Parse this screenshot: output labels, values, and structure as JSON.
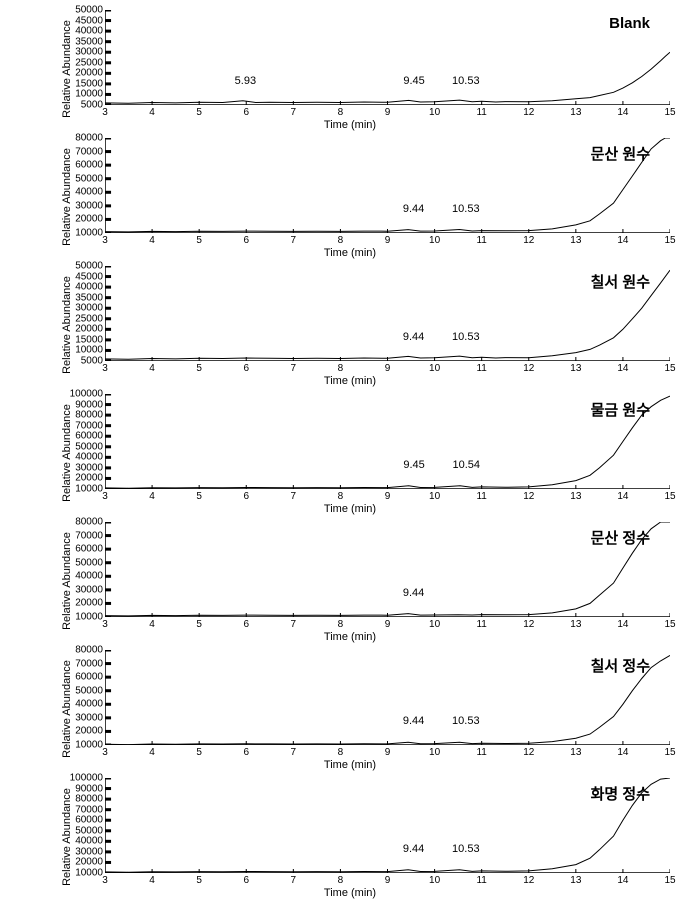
{
  "common": {
    "xlabel": "Time (min)",
    "ylabel": "Relative Abundance",
    "xlim": [
      3,
      15
    ],
    "xtick_step": 1,
    "background_color": "#ffffff",
    "line_color": "#000000",
    "text_color": "#000000",
    "label_fontsize": 11,
    "tick_fontsize": 10,
    "legend_fontsize": 15,
    "peak_fontsize": 11,
    "line_width": 1
  },
  "charts": [
    {
      "id": "blank",
      "legend": "Blank",
      "ylim": [
        5000,
        50000
      ],
      "yticks": [
        5000,
        10000,
        15000,
        20000,
        25000,
        30000,
        35000,
        40000,
        45000,
        50000
      ],
      "peaks": [
        {
          "x": 5.93,
          "label": "5.93"
        },
        {
          "x": 9.45,
          "label": "9.45"
        },
        {
          "x": 10.53,
          "label": "10.53"
        }
      ],
      "data": [
        [
          3,
          6000
        ],
        [
          3.5,
          5800
        ],
        [
          4,
          6200
        ],
        [
          4.5,
          6000
        ],
        [
          5,
          6300
        ],
        [
          5.5,
          6200
        ],
        [
          5.93,
          7000
        ],
        [
          6.2,
          6200
        ],
        [
          6.5,
          6300
        ],
        [
          7,
          6200
        ],
        [
          7.5,
          6300
        ],
        [
          8,
          6200
        ],
        [
          8.5,
          6400
        ],
        [
          9,
          6300
        ],
        [
          9.45,
          7200
        ],
        [
          9.7,
          6400
        ],
        [
          10,
          6500
        ],
        [
          10.53,
          7300
        ],
        [
          10.8,
          6500
        ],
        [
          11,
          6800
        ],
        [
          11.3,
          6400
        ],
        [
          11.5,
          6600
        ],
        [
          12,
          6500
        ],
        [
          12.5,
          7000
        ],
        [
          13,
          8000
        ],
        [
          13.3,
          8500
        ],
        [
          13.5,
          9500
        ],
        [
          13.8,
          11000
        ],
        [
          14,
          13000
        ],
        [
          14.2,
          15500
        ],
        [
          14.4,
          18500
        ],
        [
          14.6,
          22000
        ],
        [
          14.8,
          26000
        ],
        [
          14.9,
          28000
        ],
        [
          15,
          30000
        ]
      ]
    },
    {
      "id": "munsan-raw",
      "legend": "문산 원수",
      "ylim": [
        10000,
        80000
      ],
      "yticks": [
        10000,
        20000,
        30000,
        40000,
        50000,
        60000,
        70000,
        80000
      ],
      "peaks": [
        {
          "x": 9.44,
          "label": "9.44"
        },
        {
          "x": 10.53,
          "label": "10.53"
        }
      ],
      "data": [
        [
          3,
          11000
        ],
        [
          3.5,
          10800
        ],
        [
          4,
          11200
        ],
        [
          4.5,
          11000
        ],
        [
          5,
          11300
        ],
        [
          5.5,
          11200
        ],
        [
          6,
          11400
        ],
        [
          6.5,
          11300
        ],
        [
          7,
          11200
        ],
        [
          7.5,
          11300
        ],
        [
          8,
          11200
        ],
        [
          8.5,
          11400
        ],
        [
          9,
          11300
        ],
        [
          9.44,
          12500
        ],
        [
          9.7,
          11400
        ],
        [
          10,
          11500
        ],
        [
          10.53,
          12600
        ],
        [
          10.8,
          11500
        ],
        [
          11,
          11800
        ],
        [
          11.5,
          11600
        ],
        [
          12,
          11800
        ],
        [
          12.5,
          13000
        ],
        [
          13,
          16000
        ],
        [
          13.3,
          19000
        ],
        [
          13.5,
          24000
        ],
        [
          13.8,
          32000
        ],
        [
          14,
          42000
        ],
        [
          14.2,
          52000
        ],
        [
          14.4,
          62000
        ],
        [
          14.6,
          72000
        ],
        [
          14.8,
          78000
        ],
        [
          14.9,
          80000
        ],
        [
          15,
          80000
        ]
      ]
    },
    {
      "id": "chilseo-raw",
      "legend": "칠서 원수",
      "ylim": [
        5000,
        50000
      ],
      "yticks": [
        5000,
        10000,
        15000,
        20000,
        25000,
        30000,
        35000,
        40000,
        45000,
        50000
      ],
      "peaks": [
        {
          "x": 9.44,
          "label": "9.44"
        },
        {
          "x": 10.53,
          "label": "10.53"
        }
      ],
      "data": [
        [
          3,
          6000
        ],
        [
          3.5,
          5800
        ],
        [
          4,
          6200
        ],
        [
          4.5,
          6000
        ],
        [
          5,
          6300
        ],
        [
          5.5,
          6200
        ],
        [
          6,
          6400
        ],
        [
          6.5,
          6300
        ],
        [
          7,
          6200
        ],
        [
          7.5,
          6300
        ],
        [
          8,
          6200
        ],
        [
          8.5,
          6400
        ],
        [
          9,
          6300
        ],
        [
          9.44,
          7200
        ],
        [
          9.7,
          6400
        ],
        [
          10,
          6500
        ],
        [
          10.53,
          7300
        ],
        [
          10.8,
          6500
        ],
        [
          11,
          6800
        ],
        [
          11.3,
          6400
        ],
        [
          11.5,
          6600
        ],
        [
          12,
          6500
        ],
        [
          12.5,
          7500
        ],
        [
          13,
          9000
        ],
        [
          13.3,
          10500
        ],
        [
          13.5,
          12500
        ],
        [
          13.8,
          16000
        ],
        [
          14,
          20000
        ],
        [
          14.2,
          25000
        ],
        [
          14.4,
          30000
        ],
        [
          14.6,
          36000
        ],
        [
          14.8,
          42000
        ],
        [
          15,
          48000
        ]
      ]
    },
    {
      "id": "mulgeum-raw",
      "legend": "물금 원수",
      "ylim": [
        10000,
        100000
      ],
      "yticks": [
        10000,
        20000,
        30000,
        40000,
        50000,
        60000,
        70000,
        80000,
        90000,
        100000
      ],
      "peaks": [
        {
          "x": 9.45,
          "label": "9.45"
        },
        {
          "x": 10.54,
          "label": "10.54"
        }
      ],
      "data": [
        [
          3,
          11000
        ],
        [
          3.5,
          10800
        ],
        [
          4,
          11200
        ],
        [
          4.5,
          11000
        ],
        [
          5,
          11300
        ],
        [
          5.5,
          11200
        ],
        [
          6,
          11400
        ],
        [
          6.5,
          11300
        ],
        [
          7,
          11200
        ],
        [
          7.5,
          11300
        ],
        [
          8,
          11200
        ],
        [
          8.5,
          11400
        ],
        [
          9,
          11300
        ],
        [
          9.45,
          13000
        ],
        [
          9.7,
          11400
        ],
        [
          10,
          11500
        ],
        [
          10.54,
          13100
        ],
        [
          10.8,
          11500
        ],
        [
          11,
          12000
        ],
        [
          11.5,
          11600
        ],
        [
          12,
          12000
        ],
        [
          12.5,
          14000
        ],
        [
          13,
          18000
        ],
        [
          13.3,
          23000
        ],
        [
          13.5,
          30000
        ],
        [
          13.8,
          42000
        ],
        [
          14,
          55000
        ],
        [
          14.2,
          68000
        ],
        [
          14.4,
          80000
        ],
        [
          14.6,
          88000
        ],
        [
          14.8,
          94000
        ],
        [
          15,
          98000
        ]
      ]
    },
    {
      "id": "munsan-treated",
      "legend": "문산 정수",
      "ylim": [
        10000,
        80000
      ],
      "yticks": [
        10000,
        20000,
        30000,
        40000,
        50000,
        60000,
        70000,
        80000
      ],
      "peaks": [
        {
          "x": 9.44,
          "label": "9.44"
        }
      ],
      "data": [
        [
          3,
          11000
        ],
        [
          3.5,
          10800
        ],
        [
          4,
          11200
        ],
        [
          4.5,
          11000
        ],
        [
          5,
          11300
        ],
        [
          5.5,
          11200
        ],
        [
          6,
          11400
        ],
        [
          6.5,
          11300
        ],
        [
          7,
          11200
        ],
        [
          7.5,
          11300
        ],
        [
          8,
          11200
        ],
        [
          8.5,
          11400
        ],
        [
          9,
          11300
        ],
        [
          9.44,
          12500
        ],
        [
          9.7,
          11400
        ],
        [
          10,
          11500
        ],
        [
          10.5,
          11600
        ],
        [
          10.8,
          11500
        ],
        [
          11,
          11800
        ],
        [
          11.5,
          11600
        ],
        [
          12,
          11800
        ],
        [
          12.5,
          13000
        ],
        [
          13,
          16000
        ],
        [
          13.3,
          20000
        ],
        [
          13.5,
          26000
        ],
        [
          13.8,
          35000
        ],
        [
          14,
          46000
        ],
        [
          14.2,
          57000
        ],
        [
          14.4,
          67000
        ],
        [
          14.6,
          75000
        ],
        [
          14.8,
          80000
        ],
        [
          14.9,
          82000
        ],
        [
          15,
          83000
        ]
      ]
    },
    {
      "id": "chilseo-treated",
      "legend": "칠서 정수",
      "ylim": [
        10000,
        80000
      ],
      "yticks": [
        10000,
        20000,
        30000,
        40000,
        50000,
        60000,
        70000,
        80000
      ],
      "peaks": [
        {
          "x": 9.44,
          "label": "9.44"
        },
        {
          "x": 10.53,
          "label": "10.53"
        }
      ],
      "data": [
        [
          3,
          10500
        ],
        [
          3.5,
          10300
        ],
        [
          4,
          10700
        ],
        [
          4.5,
          10500
        ],
        [
          5,
          10800
        ],
        [
          5.5,
          10700
        ],
        [
          6,
          10900
        ],
        [
          6.5,
          10800
        ],
        [
          7,
          10700
        ],
        [
          7.5,
          10800
        ],
        [
          8,
          10700
        ],
        [
          8.5,
          10900
        ],
        [
          9,
          10800
        ],
        [
          9.44,
          12000
        ],
        [
          9.7,
          10900
        ],
        [
          10,
          11000
        ],
        [
          10.53,
          12100
        ],
        [
          10.8,
          11000
        ],
        [
          11,
          11300
        ],
        [
          11.5,
          11100
        ],
        [
          12,
          11300
        ],
        [
          12.5,
          12500
        ],
        [
          13,
          15000
        ],
        [
          13.3,
          18000
        ],
        [
          13.5,
          23000
        ],
        [
          13.8,
          31000
        ],
        [
          14,
          40000
        ],
        [
          14.2,
          50000
        ],
        [
          14.4,
          59000
        ],
        [
          14.6,
          67000
        ],
        [
          14.8,
          72000
        ],
        [
          15,
          76000
        ]
      ]
    },
    {
      "id": "hwamyeong-treated",
      "legend": "화명 정수",
      "ylim": [
        10000,
        100000
      ],
      "yticks": [
        10000,
        20000,
        30000,
        40000,
        50000,
        60000,
        70000,
        80000,
        90000,
        100000
      ],
      "peaks": [
        {
          "x": 9.44,
          "label": "9.44"
        },
        {
          "x": 10.53,
          "label": "10.53"
        }
      ],
      "data": [
        [
          3,
          11000
        ],
        [
          3.5,
          10800
        ],
        [
          4,
          11200
        ],
        [
          4.5,
          11000
        ],
        [
          5,
          11300
        ],
        [
          5.5,
          11200
        ],
        [
          6,
          11400
        ],
        [
          6.5,
          11300
        ],
        [
          7,
          11200
        ],
        [
          7.5,
          11300
        ],
        [
          8,
          11200
        ],
        [
          8.5,
          11400
        ],
        [
          9,
          11300
        ],
        [
          9.44,
          13000
        ],
        [
          9.7,
          11400
        ],
        [
          10,
          11500
        ],
        [
          10.53,
          13100
        ],
        [
          10.8,
          11500
        ],
        [
          11,
          12000
        ],
        [
          11.5,
          11600
        ],
        [
          12,
          12000
        ],
        [
          12.5,
          14000
        ],
        [
          13,
          18000
        ],
        [
          13.3,
          24000
        ],
        [
          13.5,
          32000
        ],
        [
          13.8,
          45000
        ],
        [
          14,
          60000
        ],
        [
          14.2,
          74000
        ],
        [
          14.4,
          86000
        ],
        [
          14.6,
          94000
        ],
        [
          14.8,
          99000
        ],
        [
          15,
          102000
        ]
      ]
    }
  ]
}
